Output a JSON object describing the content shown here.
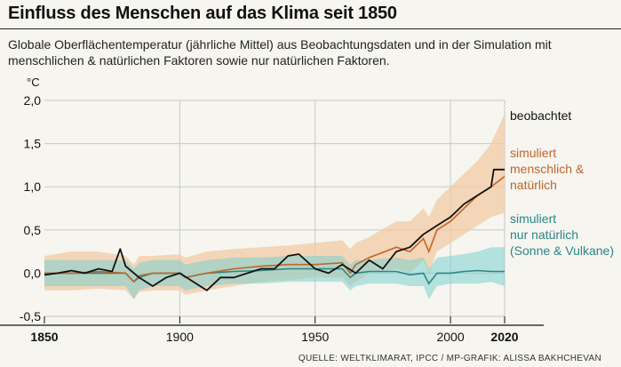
{
  "chart_data": {
    "type": "line",
    "title": "Einfluss des Menschen auf das Klima seit 1850",
    "subtitle": "Globale Oberflächentemperatur (jährliche Mittel) aus Beobachtungsdaten und in der Simulation mit menschlichen & natürlichen Faktoren sowie nur natürlichen Faktoren.",
    "ylabel": "°C",
    "xlabel": "",
    "xlim": [
      1850,
      2020
    ],
    "ylim": [
      -0.5,
      2.0
    ],
    "x_ticks": [
      1850,
      1900,
      1950,
      2000,
      2020
    ],
    "x_tick_labels": [
      "1850",
      "1900",
      "1950",
      "2000",
      "2020"
    ],
    "y_ticks": [
      -0.5,
      0,
      0.5,
      1.0,
      1.5,
      2.0
    ],
    "y_tick_labels": [
      "-0,5",
      "0,0",
      "0,5",
      "1,0",
      "1,5",
      "2,0"
    ],
    "grid": true,
    "legend_placement": "right",
    "source": "QUELLE: WELTKLIMARAT, IPCC / MP-GRAFIK: ALISSA BAKHCHEVAN",
    "colors": {
      "observed": "#111111",
      "human_natural": "#c0642a",
      "human_natural_band": "#f1c9a4",
      "natural": "#2a8686",
      "natural_band": "#7ccfcf",
      "grid": "#c8c8c8"
    },
    "series": [
      {
        "name": "beobachtet",
        "label_lines": [
          "beobachtet"
        ],
        "x": [
          1850,
          1855,
          1860,
          1865,
          1870,
          1875,
          1878,
          1880,
          1885,
          1890,
          1895,
          1900,
          1905,
          1910,
          1915,
          1920,
          1925,
          1930,
          1935,
          1940,
          1944,
          1950,
          1955,
          1960,
          1965,
          1970,
          1975,
          1980,
          1985,
          1990,
          1995,
          2000,
          2005,
          2010,
          2015,
          2016,
          2020
        ],
        "values": [
          -0.02,
          0.0,
          0.03,
          0.0,
          0.05,
          0.02,
          0.28,
          0.08,
          -0.05,
          -0.15,
          -0.05,
          0.0,
          -0.1,
          -0.2,
          -0.05,
          -0.05,
          0.0,
          0.05,
          0.05,
          0.2,
          0.22,
          0.05,
          0.0,
          0.1,
          0.0,
          0.15,
          0.05,
          0.25,
          0.3,
          0.45,
          0.55,
          0.65,
          0.8,
          0.9,
          1.0,
          1.2,
          1.2
        ]
      },
      {
        "name": "simuliert menschlich & natürlich",
        "label_lines": [
          "simuliert",
          "menschlich &",
          "natürlich"
        ],
        "x": [
          1850,
          1860,
          1870,
          1880,
          1883,
          1885,
          1890,
          1900,
          1902,
          1910,
          1920,
          1930,
          1940,
          1950,
          1960,
          1963,
          1965,
          1970,
          1980,
          1985,
          1990,
          1992,
          1995,
          2000,
          2005,
          2010,
          2015,
          2020
        ],
        "values": [
          0.0,
          0.0,
          0.02,
          0.0,
          -0.1,
          -0.03,
          0.0,
          0.0,
          -0.05,
          0.0,
          0.05,
          0.08,
          0.1,
          0.1,
          0.12,
          0.0,
          0.1,
          0.18,
          0.3,
          0.25,
          0.4,
          0.25,
          0.5,
          0.6,
          0.75,
          0.9,
          1.0,
          1.12
        ],
        "band_upper": [
          0.2,
          0.25,
          0.25,
          0.2,
          0.1,
          0.2,
          0.2,
          0.22,
          0.18,
          0.25,
          0.28,
          0.3,
          0.32,
          0.35,
          0.38,
          0.28,
          0.35,
          0.42,
          0.6,
          0.6,
          0.75,
          0.65,
          0.85,
          1.0,
          1.15,
          1.3,
          1.5,
          1.85
        ],
        "band_lower": [
          -0.2,
          -0.2,
          -0.18,
          -0.2,
          -0.3,
          -0.22,
          -0.2,
          -0.2,
          -0.25,
          -0.2,
          -0.15,
          -0.1,
          -0.08,
          -0.05,
          -0.05,
          -0.15,
          -0.1,
          0.0,
          0.05,
          0.0,
          0.15,
          0.0,
          0.25,
          0.35,
          0.45,
          0.55,
          0.65,
          0.7
        ]
      },
      {
        "name": "simuliert nur natürlich (Sonne & Vulkane)",
        "label_lines": [
          "simuliert",
          "nur natürlich",
          "(Sonne & Vulkane)"
        ],
        "x": [
          1850,
          1860,
          1870,
          1880,
          1883,
          1885,
          1890,
          1900,
          1902,
          1910,
          1920,
          1930,
          1940,
          1950,
          1960,
          1963,
          1965,
          1970,
          1980,
          1985,
          1990,
          1992,
          1995,
          2000,
          2005,
          2010,
          2015,
          2020
        ],
        "values": [
          0.0,
          0.0,
          0.0,
          0.0,
          -0.1,
          -0.05,
          0.0,
          0.0,
          -0.05,
          0.0,
          0.02,
          0.03,
          0.05,
          0.05,
          0.05,
          -0.05,
          0.0,
          0.02,
          0.02,
          -0.02,
          0.0,
          -0.12,
          0.0,
          0.0,
          0.02,
          0.03,
          0.02,
          0.02
        ],
        "band_upper": [
          0.15,
          0.15,
          0.15,
          0.15,
          0.05,
          0.12,
          0.15,
          0.15,
          0.1,
          0.15,
          0.18,
          0.18,
          0.2,
          0.2,
          0.2,
          0.1,
          0.15,
          0.15,
          0.18,
          0.15,
          0.18,
          0.05,
          0.18,
          0.2,
          0.22,
          0.25,
          0.3,
          0.3
        ],
        "band_lower": [
          -0.15,
          -0.15,
          -0.15,
          -0.15,
          -0.3,
          -0.2,
          -0.15,
          -0.15,
          -0.2,
          -0.15,
          -0.12,
          -0.12,
          -0.1,
          -0.1,
          -0.1,
          -0.2,
          -0.15,
          -0.12,
          -0.12,
          -0.15,
          -0.15,
          -0.3,
          -0.15,
          -0.12,
          -0.12,
          -0.12,
          -0.1,
          -0.15
        ]
      }
    ]
  }
}
